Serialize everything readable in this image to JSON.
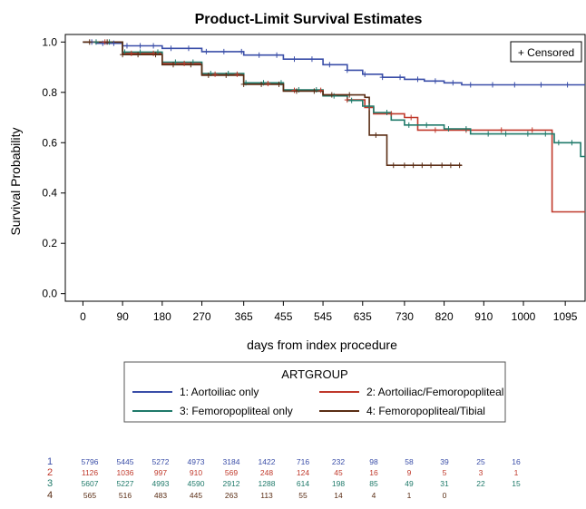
{
  "chart_data": {
    "type": "line",
    "title": "Product-Limit Survival Estimates",
    "xlabel": "days from index procedure",
    "ylabel": "Survival Probability",
    "xlim": [
      -40,
      1140
    ],
    "ylim": [
      -0.03,
      1.03
    ],
    "x_ticks": [
      0,
      90,
      180,
      270,
      365,
      455,
      545,
      635,
      730,
      820,
      910,
      1000,
      1095
    ],
    "y_ticks": [
      0.0,
      0.2,
      0.4,
      0.6,
      0.8,
      1.0
    ],
    "y_tick_labels": [
      "0.0",
      "0.2",
      "0.4",
      "0.6",
      "0.8",
      "1.0"
    ],
    "grid": false,
    "step": true,
    "censored_label": "+ Censored",
    "legend_title": "ARTGROUP",
    "legend_position": "bottom",
    "series": [
      {
        "name": "1: Aortoiliac only",
        "color": "#3a4ea8",
        "points": [
          [
            0,
            1.0
          ],
          [
            30,
            0.995
          ],
          [
            90,
            0.985
          ],
          [
            180,
            0.975
          ],
          [
            270,
            0.962
          ],
          [
            365,
            0.948
          ],
          [
            455,
            0.932
          ],
          [
            545,
            0.91
          ],
          [
            600,
            0.888
          ],
          [
            635,
            0.872
          ],
          [
            680,
            0.86
          ],
          [
            730,
            0.852
          ],
          [
            775,
            0.845
          ],
          [
            820,
            0.838
          ],
          [
            860,
            0.83
          ],
          [
            910,
            0.83
          ],
          [
            1000,
            0.83
          ],
          [
            1140,
            0.83
          ]
        ],
        "censor_x": [
          20,
          45,
          70,
          100,
          130,
          160,
          200,
          240,
          280,
          320,
          360,
          400,
          440,
          480,
          520,
          560,
          600,
          640,
          680,
          720,
          760,
          800,
          840,
          880,
          930,
          980,
          1040,
          1100
        ]
      },
      {
        "name": "2: Aortoiliac/Femoropopliteal",
        "color": "#c0392b",
        "points": [
          [
            0,
            1.0
          ],
          [
            90,
            0.955
          ],
          [
            180,
            0.915
          ],
          [
            270,
            0.872
          ],
          [
            365,
            0.835
          ],
          [
            455,
            0.808
          ],
          [
            545,
            0.79
          ],
          [
            600,
            0.77
          ],
          [
            640,
            0.74
          ],
          [
            660,
            0.715
          ],
          [
            730,
            0.7
          ],
          [
            760,
            0.65
          ],
          [
            820,
            0.65
          ],
          [
            910,
            0.65
          ],
          [
            1000,
            0.65
          ],
          [
            1060,
            0.65
          ],
          [
            1065,
            0.325
          ],
          [
            1140,
            0.325
          ]
        ],
        "censor_x": [
          50,
          110,
          160,
          230,
          300,
          350,
          420,
          480,
          540,
          600,
          650,
          700,
          745,
          800,
          870,
          950,
          1020
        ]
      },
      {
        "name": "3: Femoropopliteal only",
        "color": "#1f7a6a",
        "points": [
          [
            0,
            1.0
          ],
          [
            90,
            0.96
          ],
          [
            180,
            0.92
          ],
          [
            270,
            0.875
          ],
          [
            365,
            0.838
          ],
          [
            455,
            0.81
          ],
          [
            545,
            0.786
          ],
          [
            600,
            0.768
          ],
          [
            635,
            0.745
          ],
          [
            660,
            0.72
          ],
          [
            700,
            0.69
          ],
          [
            730,
            0.67
          ],
          [
            820,
            0.655
          ],
          [
            880,
            0.635
          ],
          [
            1000,
            0.635
          ],
          [
            1070,
            0.6
          ],
          [
            1125,
            0.6
          ],
          [
            1130,
            0.545
          ],
          [
            1140,
            0.545
          ]
        ],
        "censor_x": [
          30,
          60,
          95,
          130,
          170,
          210,
          250,
          290,
          330,
          370,
          410,
          450,
          490,
          530,
          570,
          610,
          650,
          690,
          740,
          780,
          830,
          870,
          920,
          960,
          1010,
          1050,
          1080,
          1110
        ]
      },
      {
        "name": "4: Femoropopliteal/Tibial",
        "color": "#5a2d14",
        "points": [
          [
            0,
            1.0
          ],
          [
            90,
            0.95
          ],
          [
            180,
            0.91
          ],
          [
            270,
            0.868
          ],
          [
            365,
            0.832
          ],
          [
            455,
            0.805
          ],
          [
            545,
            0.79
          ],
          [
            600,
            0.79
          ],
          [
            640,
            0.78
          ],
          [
            650,
            0.63
          ],
          [
            680,
            0.63
          ],
          [
            690,
            0.51
          ],
          [
            860,
            0.51
          ]
        ],
        "censor_x": [
          15,
          55,
          90,
          125,
          165,
          205,
          245,
          285,
          325,
          365,
          405,
          445,
          485,
          525,
          565,
          605,
          665,
          705,
          730,
          750,
          770,
          790,
          815,
          835,
          855
        ]
      }
    ],
    "risk_table": {
      "rows": [
        {
          "label": "1",
          "color": "#3a4ea8",
          "values": [
            "5796",
            "5445",
            "5272",
            "4973",
            "3184",
            "1422",
            "716",
            "232",
            "98",
            "58",
            "39",
            "25",
            "16"
          ]
        },
        {
          "label": "2",
          "color": "#c0392b",
          "values": [
            "1126",
            "1036",
            "997",
            "910",
            "569",
            "248",
            "124",
            "45",
            "16",
            "9",
            "5",
            "3",
            "1"
          ]
        },
        {
          "label": "3",
          "color": "#1f7a6a",
          "values": [
            "5607",
            "5227",
            "4993",
            "4590",
            "2912",
            "1288",
            "614",
            "198",
            "85",
            "49",
            "31",
            "22",
            "15"
          ]
        },
        {
          "label": "4",
          "color": "#5a2d14",
          "values": [
            "565",
            "516",
            "483",
            "445",
            "263",
            "113",
            "55",
            "14",
            "4",
            "1",
            "0",
            "",
            ""
          ]
        }
      ]
    }
  }
}
